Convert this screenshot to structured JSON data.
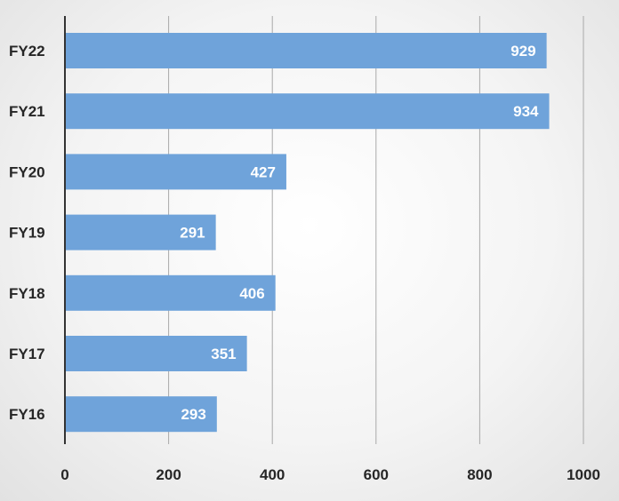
{
  "chart_data": {
    "type": "bar",
    "orientation": "horizontal",
    "title": "",
    "xlabel": "",
    "ylabel": "",
    "categories": [
      "FY22",
      "FY21",
      "FY20",
      "FY19",
      "FY18",
      "FY17",
      "FY16"
    ],
    "values": [
      929,
      934,
      427,
      291,
      406,
      351,
      293
    ],
    "xlim": [
      0,
      1000
    ],
    "x_ticks": [
      0,
      200,
      400,
      600,
      800,
      1000
    ],
    "grid": true,
    "legend": "none",
    "data_labels": "inside-end",
    "bar_color": "#6fa3da",
    "label_color": "#ffffff"
  }
}
